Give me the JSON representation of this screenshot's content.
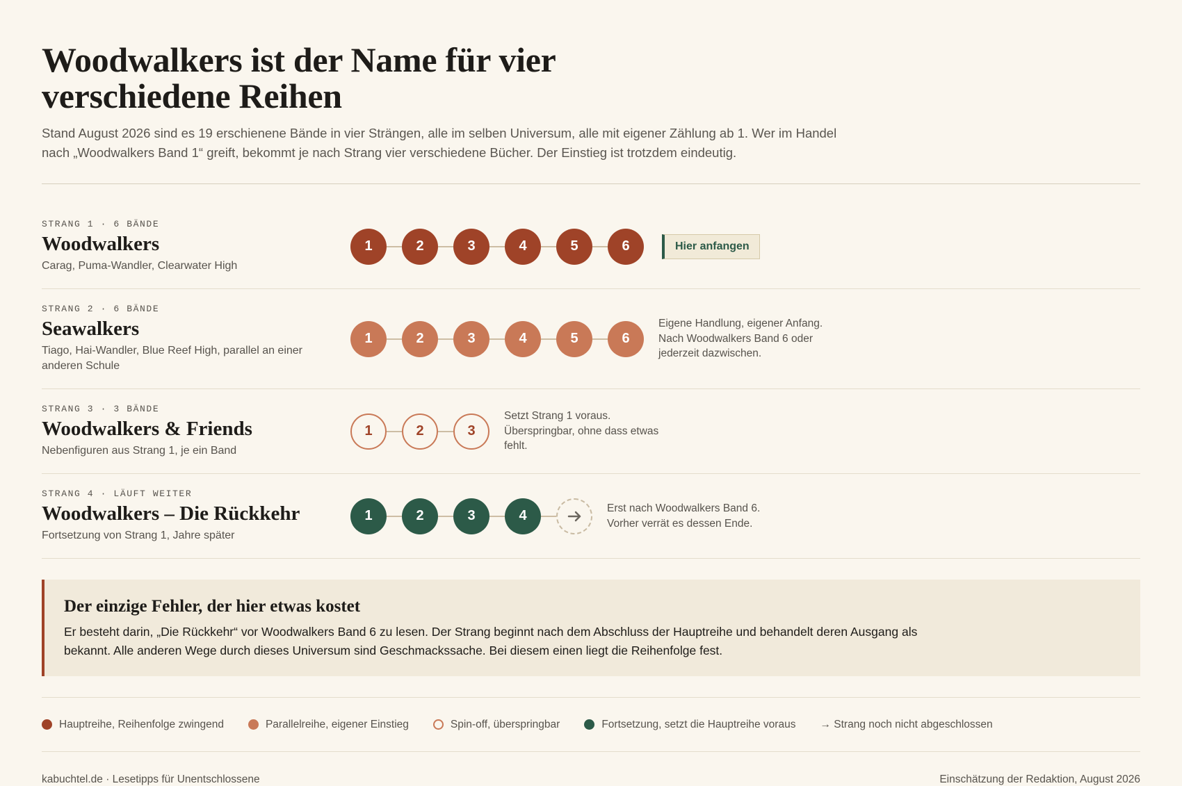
{
  "header": {
    "title": "Woodwalkers ist der Name für vier verschiedene Reihen",
    "subtitle": "Stand August 2026 sind es 19 erschienene Bände in vier Strängen, alle im selben Universum, alle mit eigener Zählung ab 1. Wer im Handel nach „Woodwalkers Band 1“ greift, bekommt je nach Strang vier verschiedene Bücher. Der Einstieg ist trotzdem eindeutig."
  },
  "strands": [
    {
      "label": "STRANG 1 · 6 BÄNDE",
      "title": "Woodwalkers",
      "subtitle": "Carag, Puma-Wandler, Clearwater High",
      "color": "#9f4328",
      "filled": true,
      "books": [
        1,
        2,
        3,
        4,
        5,
        6
      ],
      "cta": "Hier anfangen"
    },
    {
      "label": "STRANG 2 · 6 BÄNDE",
      "title": "Seawalkers",
      "subtitle": "Tiago, Hai-Wandler, Blue Reef High, parallel an einer anderen Schule",
      "color": "#c97957",
      "filled": true,
      "books": [
        1,
        2,
        3,
        4,
        5,
        6
      ],
      "note": "Eigene Handlung, eigener Anfang. Nach Woodwalkers Band 6 oder jederzeit dazwischen."
    },
    {
      "label": "STRANG 3 · 3 BÄNDE",
      "title": "Woodwalkers & Friends",
      "subtitle": "Nebenfiguren aus Strang 1, je ein Band",
      "color": "#c97957",
      "filled": false,
      "books": [
        1,
        2,
        3
      ],
      "note": "Setzt Strang 1 voraus. Überspringbar, ohne dass etwas fehlt."
    },
    {
      "label": "STRANG 4 · LÄUFT WEITER",
      "title": "Woodwalkers – Die Rückkehr",
      "subtitle": "Fortsetzung von Strang 1, Jahre später",
      "color": "#2c5a48",
      "filled": true,
      "open": true,
      "books": [
        1,
        2,
        3,
        4
      ],
      "note": "Erst nach Woodwalkers Band 6. Vorher verrät es dessen Ende."
    }
  ],
  "callout": {
    "title": "Der einzige Fehler, der hier etwas kostet",
    "text": "Er besteht darin, „Die Rückkehr“ vor Woodwalkers Band 6 zu lesen. Der Strang beginnt nach dem Abschluss der Hauptreihe und behandelt deren Ausgang als bekannt. Alle anderen Wege durch dieses Universum sind Geschmackssache. Bei diesem einen liegt die Reihenfolge fest."
  },
  "legend": [
    {
      "text": "Hauptreihe, Reihenfolge zwingend",
      "color": "#9f4328",
      "filled": true
    },
    {
      "text": "Parallelreihe, eigener Einstieg",
      "color": "#c97957",
      "filled": true
    },
    {
      "text": "Spin-off, überspringbar",
      "color": "#c97957",
      "filled": false
    },
    {
      "text": "Fortsetzung, setzt die Hauptreihe voraus",
      "color": "#2c5a48",
      "filled": true
    },
    {
      "text": "→ Strang noch nicht abgeschlossen"
    }
  ],
  "footer": {
    "left": "kabuchtel.de · Lesetipps für Unentschlossene",
    "right": "Einschätzung der Redaktion, August 2026"
  }
}
